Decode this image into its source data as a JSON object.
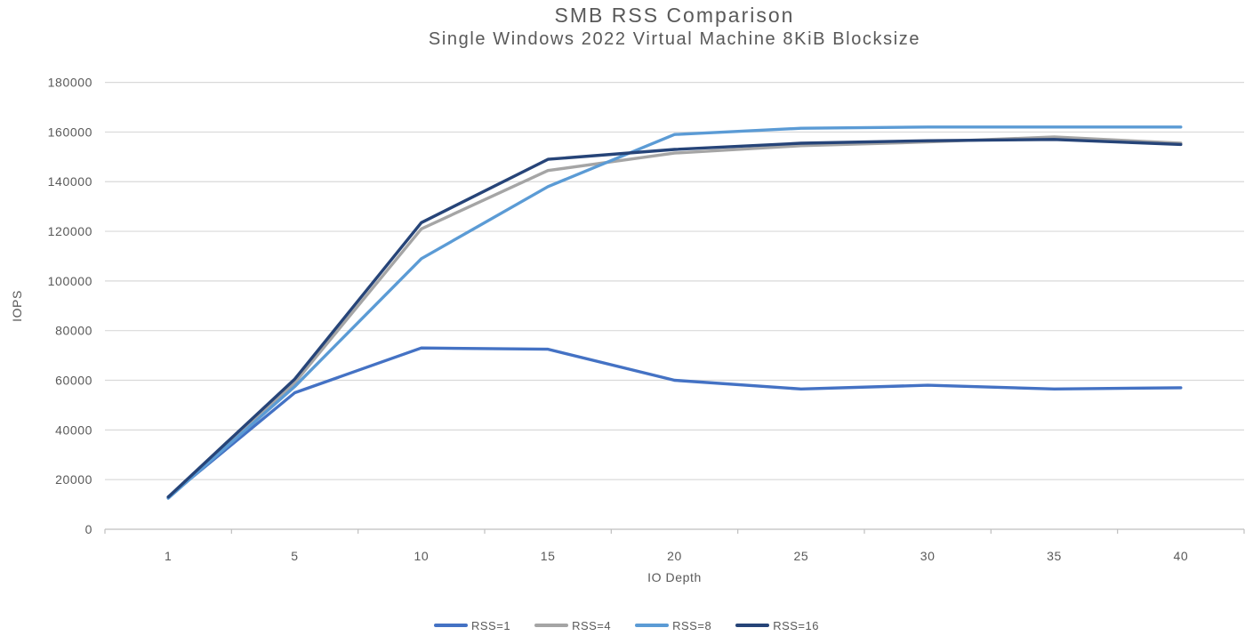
{
  "title": "SMB RSS Comparison",
  "subtitle": "Single Windows 2022 Virtual Machine 8KiB Blocksize",
  "chart_data": {
    "type": "line",
    "title": "SMB RSS Comparison",
    "subtitle": "Single Windows 2022 Virtual Machine 8KiB Blocksize",
    "xlabel": "IO Depth",
    "ylabel": "IOPS",
    "categories": [
      1,
      5,
      10,
      15,
      20,
      25,
      30,
      35,
      40
    ],
    "series": [
      {
        "name": "RSS=1",
        "color": "#4472C4",
        "values": [
          13000,
          55000,
          73000,
          72500,
          60000,
          56500,
          58000,
          56500,
          57000
        ]
      },
      {
        "name": "RSS=4",
        "color": "#A5A5A5",
        "values": [
          12800,
          59000,
          121000,
          144500,
          151500,
          154500,
          156000,
          158000,
          155500
        ]
      },
      {
        "name": "RSS=8",
        "color": "#5B9BD5",
        "values": [
          12500,
          57500,
          109000,
          138000,
          159000,
          161500,
          162000,
          162000,
          162000
        ]
      },
      {
        "name": "RSS=16",
        "color": "#264478",
        "values": [
          13000,
          60500,
          123500,
          149000,
          153000,
          155500,
          156500,
          157000,
          155000
        ]
      }
    ],
    "ylim": [
      0,
      180000
    ],
    "ytick_step": 20000,
    "y_tick_labels": [
      "0",
      "20000",
      "40000",
      "60000",
      "80000",
      "100000",
      "120000",
      "140000",
      "160000",
      "180000"
    ],
    "grid": "horizontal",
    "legend_position": "bottom",
    "legend_entries": [
      "RSS=1",
      "RSS=4",
      "RSS=8",
      "RSS=16"
    ]
  },
  "colors": {
    "gridline": "#D9D9D9",
    "axis_line": "#BFBFBF",
    "text": "#595959",
    "background": "#FFFFFF"
  }
}
